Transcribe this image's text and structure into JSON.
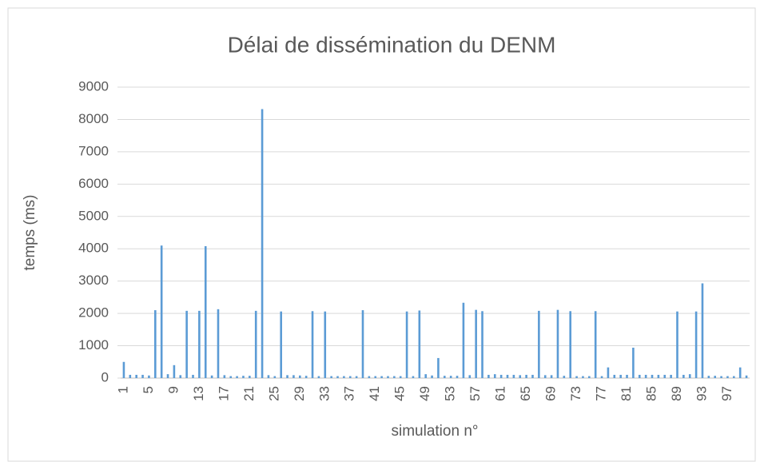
{
  "chart_data": {
    "type": "bar",
    "title": "Délai de dissémination du DENM",
    "x_label": "simulation n°",
    "y_label": "temps (ms)",
    "categories": [
      1,
      null,
      null,
      null,
      5,
      null,
      null,
      null,
      9,
      null,
      null,
      null,
      13,
      null,
      null,
      null,
      17,
      null,
      null,
      null,
      21,
      null,
      null,
      null,
      25,
      null,
      null,
      null,
      29,
      null,
      null,
      null,
      33,
      null,
      null,
      null,
      37,
      null,
      null,
      null,
      41,
      null,
      null,
      null,
      45,
      null,
      null,
      null,
      49,
      null,
      null,
      null,
      53,
      null,
      null,
      null,
      57,
      null,
      null,
      null,
      61,
      null,
      null,
      null,
      65,
      null,
      null,
      null,
      69,
      null,
      null,
      null,
      73,
      null,
      null,
      null,
      77,
      null,
      null,
      null,
      81,
      null,
      null,
      null,
      85,
      null,
      null,
      null,
      89,
      null,
      null,
      null,
      93,
      null,
      null,
      null,
      97,
      null,
      null,
      null
    ],
    "values": [
      500,
      100,
      100,
      100,
      80,
      2100,
      4100,
      120,
      400,
      90,
      2080,
      100,
      2080,
      4080,
      80,
      2130,
      90,
      60,
      60,
      70,
      70,
      2080,
      8320,
      90,
      60,
      2060,
      90,
      90,
      80,
      70,
      2070,
      60,
      2060,
      60,
      60,
      60,
      60,
      60,
      2100,
      60,
      60,
      60,
      60,
      60,
      60,
      2060,
      60,
      2090,
      120,
      80,
      620,
      70,
      70,
      70,
      2330,
      90,
      2110,
      2070,
      100,
      120,
      100,
      100,
      100,
      90,
      100,
      100,
      2080,
      90,
      90,
      2110,
      70,
      2070,
      60,
      60,
      60,
      2070,
      60,
      330,
      100,
      100,
      100,
      940,
      100,
      100,
      100,
      100,
      100,
      100,
      2060,
      100,
      120,
      2060,
      2930,
      70,
      70,
      60,
      60,
      60,
      330,
      80
    ],
    "color": "#5b9bd5",
    "ylim": [
      0,
      9000
    ],
    "yticks": [
      0,
      1000,
      2000,
      3000,
      4000,
      5000,
      6000,
      7000,
      8000,
      9000
    ],
    "grid": true
  }
}
